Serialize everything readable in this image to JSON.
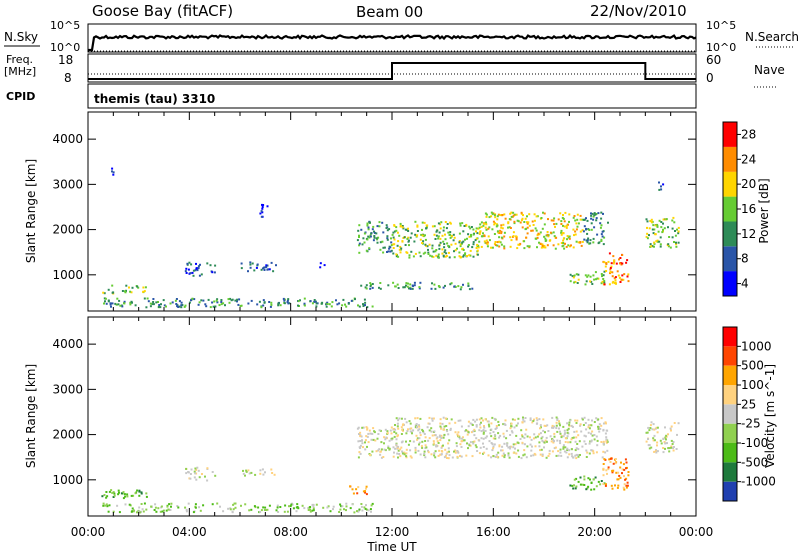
{
  "header": {
    "station": "Goose Bay (fitACF)",
    "beam": "Beam 00",
    "date": "22/Nov/2010"
  },
  "status_panels": {
    "nsky_label": "N.Sky",
    "nsky_ticks": [
      "10^5",
      "10^0"
    ],
    "nsearch_label": "N.Search",
    "nsearch_ticks": [
      "10^5",
      "10^0"
    ],
    "freq_label_line1": "Freq.",
    "freq_label_line2": "[MHz]",
    "freq_ticks": [
      "18",
      "8"
    ],
    "nave_label": "Nave",
    "nave_ticks": [
      "60",
      "0"
    ],
    "cpid_label": "CPID",
    "cpid_text": "themis (tau) 3310"
  },
  "colors": {
    "background": "#ffffff",
    "axis": "#000000",
    "grey_scatter": "#c8c8c8"
  },
  "chart_data": [
    {
      "type": "heatmap",
      "panel": "power",
      "xlabel": "",
      "ylabel": "Slant Range [km]",
      "xlim": [
        0,
        24
      ],
      "ylim": [
        200,
        4600
      ],
      "yticks": [
        "1000",
        "2000",
        "3000",
        "4000"
      ],
      "colorbar": {
        "label": "Power [dB]",
        "ticks": [
          "4",
          "8",
          "12",
          "16",
          "20",
          "24",
          "28"
        ],
        "colors": [
          "#0000ff",
          "#2a55a8",
          "#2e8b57",
          "#66cc33",
          "#ffd500",
          "#ff8c00",
          "#ff0000"
        ]
      },
      "echo_regions": [
        {
          "t": [
            0.5,
            11.3
          ],
          "r": [
            300,
            500
          ],
          "level": 2
        },
        {
          "t": [
            0.5,
            2.3
          ],
          "r": [
            600,
            800
          ],
          "level": 3
        },
        {
          "t": [
            3.8,
            5.0
          ],
          "r": [
            1000,
            1300
          ],
          "level": 1
        },
        {
          "t": [
            6.0,
            7.4
          ],
          "r": [
            1100,
            1300
          ],
          "level": 1
        },
        {
          "t": [
            6.7,
            7.1
          ],
          "r": [
            2300,
            2600
          ],
          "level": 0
        },
        {
          "t": [
            9.0,
            9.4
          ],
          "r": [
            1150,
            1300
          ],
          "level": 0
        },
        {
          "t": [
            10.6,
            12.0
          ],
          "r": [
            1500,
            2200
          ],
          "level": 2
        },
        {
          "t": [
            12.0,
            15.5
          ],
          "r": [
            1400,
            2200
          ],
          "level": 3
        },
        {
          "t": [
            15.5,
            19.5
          ],
          "r": [
            1600,
            2400
          ],
          "level": 4
        },
        {
          "t": [
            19.5,
            20.5
          ],
          "r": [
            1700,
            2400
          ],
          "level": 2
        },
        {
          "t": [
            10.7,
            15.3
          ],
          "r": [
            700,
            850
          ],
          "level": 2
        },
        {
          "t": [
            19.0,
            20.4
          ],
          "r": [
            800,
            1100
          ],
          "level": 3
        },
        {
          "t": [
            20.3,
            21.3
          ],
          "r": [
            800,
            1500
          ],
          "level": 5
        },
        {
          "t": [
            22.0,
            23.3
          ],
          "r": [
            1600,
            2300
          ],
          "level": 3
        },
        {
          "t": [
            22.5,
            22.8
          ],
          "r": [
            2900,
            3200
          ],
          "level": 1
        },
        {
          "t": [
            0.9,
            1.1
          ],
          "r": [
            3100,
            3400
          ],
          "level": 0
        }
      ]
    },
    {
      "type": "heatmap",
      "panel": "velocity",
      "xlabel": "Time UT",
      "ylabel": "Slant Range [km]",
      "xlim": [
        0,
        24
      ],
      "ylim": [
        200,
        4600
      ],
      "xticks": [
        "00:00",
        "04:00",
        "08:00",
        "12:00",
        "16:00",
        "20:00",
        "00:00"
      ],
      "yticks": [
        "1000",
        "2000",
        "3000",
        "4000"
      ],
      "colorbar": {
        "label": "Velocity [m s^-1]",
        "ticks": [
          "1000",
          "500",
          "100",
          "25",
          "-25",
          "-100",
          "-500",
          "-1000"
        ],
        "colors": [
          "#2040b0",
          "#1e7a3c",
          "#4cbb17",
          "#90d050",
          "#c8c8c8",
          "#ffd27f",
          "#ffa500",
          "#ff4500",
          "#ff0000"
        ]
      },
      "echo_regions": [
        {
          "t": [
            0.5,
            11.3
          ],
          "r": [
            300,
            500
          ],
          "level": 3
        },
        {
          "t": [
            0.5,
            2.3
          ],
          "r": [
            600,
            800
          ],
          "level": 2
        },
        {
          "t": [
            3.8,
            5.0
          ],
          "r": [
            1000,
            1300
          ],
          "level": 4
        },
        {
          "t": [
            6.0,
            7.4
          ],
          "r": [
            1100,
            1300
          ],
          "level": 4
        },
        {
          "t": [
            10.3,
            11.0
          ],
          "r": [
            700,
            900
          ],
          "level": 6
        },
        {
          "t": [
            10.6,
            12.0
          ],
          "r": [
            1500,
            2200
          ],
          "level": 4
        },
        {
          "t": [
            12.0,
            20.5
          ],
          "r": [
            1500,
            2400
          ],
          "level": 4
        },
        {
          "t": [
            19.0,
            20.4
          ],
          "r": [
            800,
            1100
          ],
          "level": 2
        },
        {
          "t": [
            20.3,
            21.3
          ],
          "r": [
            800,
            1500
          ],
          "level": 6
        },
        {
          "t": [
            22.0,
            23.3
          ],
          "r": [
            1600,
            2300
          ],
          "level": 4
        }
      ]
    }
  ]
}
